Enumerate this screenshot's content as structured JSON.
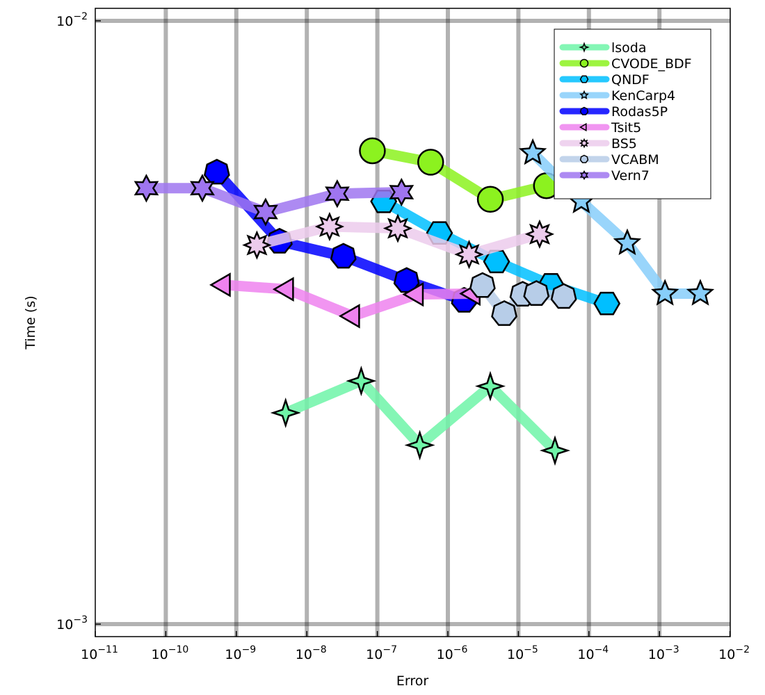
{
  "chart_data": {
    "type": "line",
    "title": "",
    "xlabel": "Error",
    "ylabel": "Time (s)",
    "xscale": "log",
    "yscale": "log",
    "xlim": [
      1e-11,
      0.01
    ],
    "ylim": [
      0.0009,
      0.0104
    ],
    "x_tick_base": "10",
    "x_tick_exponents": [
      -11,
      -10,
      -9,
      -8,
      -7,
      -6,
      -5,
      -4,
      -3,
      -2
    ],
    "y_tick_base": "10",
    "y_tick_exponents": [
      -3,
      -2
    ],
    "grid": true,
    "legend_position": "top-right",
    "series": [
      {
        "name": "lsoda",
        "color": "#6ff5a8",
        "marker": "star4",
        "x": [
          5e-09,
          5.9e-08,
          4e-07,
          4e-06,
          3.3e-05
        ],
        "y": [
          0.00224,
          0.00253,
          0.00198,
          0.00248,
          0.00194
        ]
      },
      {
        "name": "CVODE_BDF",
        "color": "#8cf21f",
        "marker": "circle",
        "x": [
          8.5e-08,
          5.7e-07,
          4e-06,
          2.5e-05
        ],
        "y": [
          0.00609,
          0.00583,
          0.00506,
          0.00533
        ]
      },
      {
        "name": "QNDF",
        "color": "#00bfff",
        "marker": "hexagon",
        "x": [
          1.23e-07,
          7.6e-07,
          4.9e-06,
          2.9e-05,
          0.00018
        ],
        "y": [
          0.00502,
          0.00445,
          0.00399,
          0.00365,
          0.0034
        ]
      },
      {
        "name": "KenCarp4",
        "color": "#87cefa",
        "marker": "star5",
        "x": [
          1.6e-05,
          7.8e-05,
          0.00035,
          0.0012,
          0.0038
        ],
        "y": [
          0.00604,
          0.00502,
          0.00428,
          0.00353,
          0.00353
        ]
      },
      {
        "name": "Rodas5P",
        "color": "#0000ff",
        "marker": "heptagon",
        "x": [
          5.3e-10,
          4.1e-09,
          3.3e-08,
          2.6e-07,
          1.7e-06
        ],
        "y": [
          0.00561,
          0.00431,
          0.00407,
          0.00371,
          0.00344
        ]
      },
      {
        "name": "Tsit5",
        "color": "#ee82ee",
        "marker": "ltriangle",
        "x": [
          6.6e-10,
          5.2e-09,
          4.5e-08,
          3.6e-07,
          2.3e-06
        ],
        "y": [
          0.00365,
          0.00359,
          0.00324,
          0.00352,
          0.00353
        ]
      },
      {
        "name": "BS5",
        "color": "#eccbec",
        "marker": "star8",
        "x": [
          1.96e-09,
          2.1e-08,
          1.95e-07,
          2e-06,
          2e-05
        ],
        "y": [
          0.00425,
          0.00456,
          0.00453,
          0.0041,
          0.00443
        ]
      },
      {
        "name": "VCABM",
        "color": "#b7cde8",
        "marker": "heptagon",
        "x": [
          3.1e-06,
          6.3e-06,
          1.15e-05,
          1.8e-05,
          4.4e-05
        ],
        "y": [
          0.00364,
          0.00327,
          0.00352,
          0.00353,
          0.00349
        ]
      },
      {
        "name": "Vern7",
        "color": "#9f75f0",
        "marker": "star6",
        "x": [
          5.3e-11,
          3.3e-10,
          2.6e-09,
          2.7e-08,
          2.2e-07
        ],
        "y": [
          0.00528,
          0.00528,
          0.00482,
          0.00517,
          0.0052
        ]
      }
    ]
  }
}
